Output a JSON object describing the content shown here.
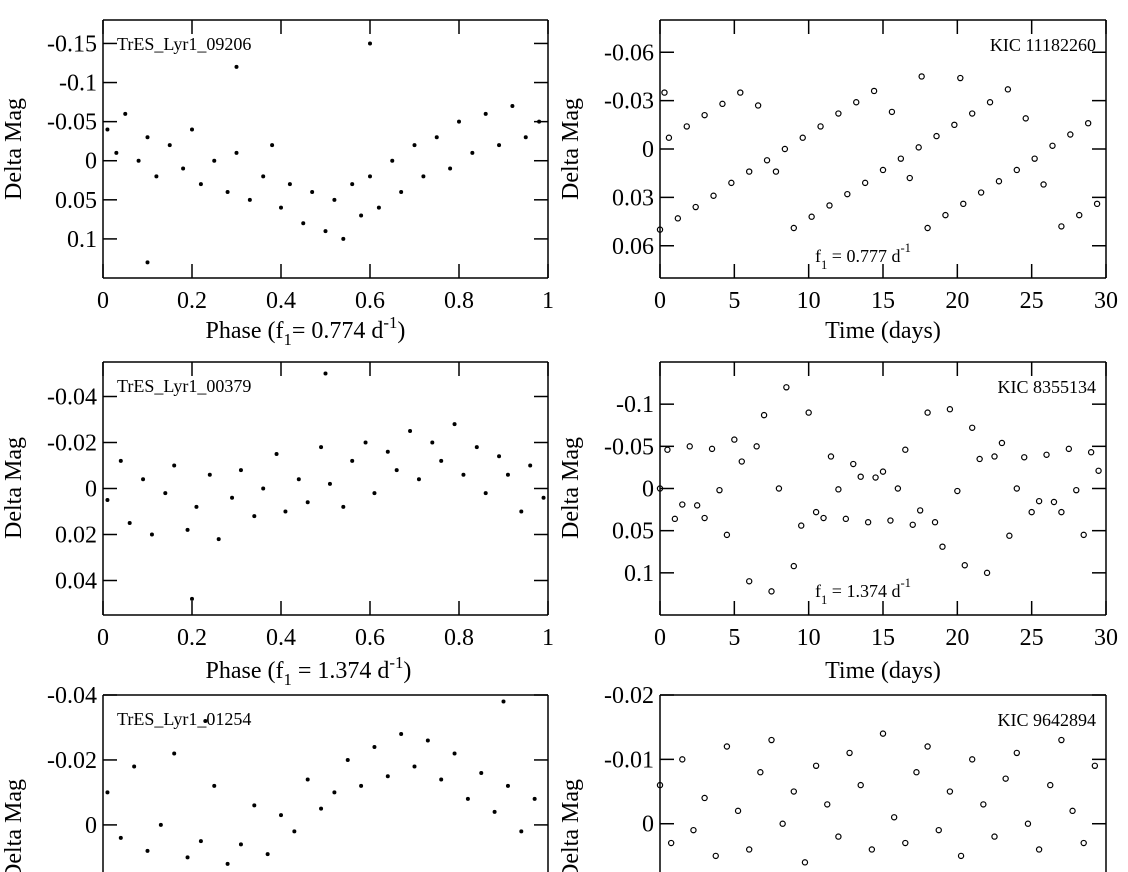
{
  "chart_data": [
    {
      "type": "scatter",
      "annotation": "TrES_Lyr1_09206",
      "ylabel": "Delta Mag",
      "xlabel": {
        "pre": "Phase (f",
        "sub": "1",
        "mid": "= 0.774 d",
        "sup": "-1",
        "post": ")"
      },
      "marker": "filled",
      "y_inverted": true,
      "xlim": [
        0,
        1
      ],
      "xticks": [
        0,
        0.2,
        0.4,
        0.6,
        0.8,
        1
      ],
      "ylim": [
        -0.18,
        0.15
      ],
      "yticks": [
        -0.15,
        -0.1,
        -0.05,
        0,
        0.05,
        0.1
      ],
      "x": [
        0.01,
        0.03,
        0.05,
        0.08,
        0.1,
        0.12,
        0.15,
        0.18,
        0.2,
        0.22,
        0.25,
        0.28,
        0.3,
        0.33,
        0.36,
        0.38,
        0.4,
        0.42,
        0.45,
        0.47,
        0.5,
        0.52,
        0.54,
        0.56,
        0.58,
        0.6,
        0.62,
        0.65,
        0.67,
        0.7,
        0.72,
        0.75,
        0.78,
        0.8,
        0.83,
        0.86,
        0.89,
        0.92,
        0.95,
        0.98,
        0.3,
        0.6,
        0.1
      ],
      "series": [
        {
          "color": "#000000",
          "values": [
            -0.04,
            -0.01,
            -0.06,
            0,
            -0.03,
            0.02,
            -0.02,
            0.01,
            -0.04,
            0.03,
            0,
            0.04,
            -0.01,
            0.05,
            0.02,
            -0.02,
            0.06,
            0.03,
            0.08,
            0.04,
            0.09,
            0.05,
            0.1,
            0.03,
            0.07,
            0.02,
            0.06,
            0,
            0.04,
            -0.02,
            0.02,
            -0.03,
            0.01,
            -0.05,
            -0.01,
            -0.06,
            -0.02,
            -0.07,
            -0.03,
            -0.05,
            -0.12,
            -0.15,
            0.13
          ]
        }
      ]
    },
    {
      "type": "scatter",
      "annotation": "KIC 11182260",
      "ylabel": "Delta Mag",
      "xlabel": "Time (days)",
      "frequency": {
        "pre": "f",
        "sub": "1",
        "mid": " = 0.777 d",
        "sup": "-1"
      },
      "marker": "open",
      "y_inverted": true,
      "xlim": [
        0,
        30
      ],
      "xticks": [
        0,
        5,
        10,
        15,
        20,
        25,
        30
      ],
      "ylim": [
        -0.08,
        0.08
      ],
      "yticks": [
        -0.06,
        -0.03,
        0,
        0.03,
        0.06
      ],
      "x": [
        0,
        0.6,
        1.2,
        1.8,
        2.4,
        3,
        3.6,
        4.2,
        4.8,
        5.4,
        6,
        6.6,
        7.2,
        7.8,
        8.4,
        9,
        9.6,
        10.2,
        10.8,
        11.4,
        12,
        12.6,
        13.2,
        13.8,
        14.4,
        15,
        15.6,
        16.2,
        16.8,
        17.4,
        18,
        18.6,
        19.2,
        19.8,
        20.4,
        21,
        21.6,
        22.2,
        22.8,
        23.4,
        24,
        24.6,
        25.2,
        25.8,
        26.4,
        27,
        27.6,
        28.2,
        28.8,
        29.4,
        17.6,
        20.2,
        0.3
      ],
      "series": [
        {
          "color": "#000000",
          "values": [
            0.05,
            -0.007,
            0.043,
            -0.014,
            0.036,
            -0.021,
            0.029,
            -0.028,
            0.021,
            -0.035,
            0.014,
            -0.027,
            0.007,
            0.014,
            0,
            0.049,
            -0.007,
            0.042,
            -0.014,
            0.035,
            -0.022,
            0.028,
            -0.029,
            0.021,
            -0.036,
            0.013,
            -0.023,
            0.006,
            0.018,
            -0.001,
            0.049,
            -0.008,
            0.041,
            -0.015,
            0.034,
            -0.022,
            0.027,
            -0.029,
            0.02,
            -0.037,
            0.013,
            -0.019,
            0.006,
            0.022,
            -0.002,
            0.048,
            -0.009,
            0.041,
            -0.016,
            0.034,
            -0.045,
            -0.044,
            -0.035
          ]
        }
      ]
    },
    {
      "type": "scatter",
      "annotation": "TrES_Lyr1_00379",
      "ylabel": "Delta Mag",
      "xlabel": {
        "pre": "Phase (f",
        "sub": "1",
        "mid": " = 1.374 d",
        "sup": "-1",
        "post": ")"
      },
      "marker": "filled",
      "y_inverted": true,
      "xlim": [
        0,
        1
      ],
      "xticks": [
        0,
        0.2,
        0.4,
        0.6,
        0.8,
        1
      ],
      "ylim": [
        -0.055,
        0.055
      ],
      "yticks": [
        -0.04,
        -0.02,
        0,
        0.02,
        0.04
      ],
      "x": [
        0.01,
        0.04,
        0.06,
        0.09,
        0.11,
        0.14,
        0.16,
        0.19,
        0.21,
        0.24,
        0.26,
        0.29,
        0.31,
        0.34,
        0.36,
        0.39,
        0.41,
        0.44,
        0.46,
        0.49,
        0.51,
        0.54,
        0.56,
        0.59,
        0.61,
        0.64,
        0.66,
        0.69,
        0.71,
        0.74,
        0.76,
        0.79,
        0.81,
        0.84,
        0.86,
        0.89,
        0.91,
        0.94,
        0.96,
        0.99,
        0.5,
        0.2
      ],
      "series": [
        {
          "color": "#000000",
          "values": [
            0.005,
            -0.012,
            0.015,
            -0.004,
            0.02,
            0.002,
            -0.01,
            0.018,
            0.008,
            -0.006,
            0.022,
            0.004,
            -0.008,
            0.012,
            0,
            -0.015,
            0.01,
            -0.004,
            0.006,
            -0.018,
            -0.002,
            0.008,
            -0.012,
            -0.02,
            0.002,
            -0.016,
            -0.008,
            -0.025,
            -0.004,
            -0.02,
            -0.012,
            -0.028,
            -0.006,
            -0.018,
            0.002,
            -0.014,
            -0.006,
            0.01,
            -0.01,
            0.004,
            -0.05,
            0.048
          ]
        }
      ]
    },
    {
      "type": "scatter",
      "annotation": "KIC 8355134",
      "ylabel": "Delta Mag",
      "xlabel": "Time (days)",
      "frequency": {
        "pre": "f",
        "sub": "1",
        "mid": " = 1.374 d",
        "sup": "-1"
      },
      "marker": "open",
      "y_inverted": true,
      "xlim": [
        0,
        30
      ],
      "xticks": [
        0,
        5,
        10,
        15,
        20,
        25,
        30
      ],
      "ylim": [
        -0.15,
        0.15
      ],
      "yticks": [
        -0.1,
        -0.05,
        0,
        0.05,
        0.1
      ],
      "x": [
        0,
        0.5,
        1,
        1.5,
        2,
        2.5,
        3,
        3.5,
        4,
        4.5,
        5,
        5.5,
        6,
        6.5,
        7,
        7.5,
        8,
        8.5,
        9,
        9.5,
        10,
        10.5,
        11,
        11.5,
        12,
        12.5,
        13,
        13.5,
        14,
        14.5,
        15,
        15.5,
        16,
        16.5,
        17,
        17.5,
        18,
        18.5,
        19,
        19.5,
        20,
        20.5,
        21,
        21.5,
        22,
        22.5,
        23,
        23.5,
        24,
        24.5,
        25,
        25.5,
        26,
        26.5,
        27,
        27.5,
        28,
        28.5,
        29,
        29.5
      ],
      "series": [
        {
          "color": "#000000",
          "values": [
            0,
            -0.046,
            0.036,
            0.019,
            -0.05,
            0.02,
            0.035,
            -0.047,
            0.002,
            0.055,
            -0.058,
            -0.032,
            0.11,
            -0.05,
            -0.087,
            0.122,
            0,
            -0.12,
            0.092,
            0.044,
            -0.09,
            0.028,
            0.035,
            -0.038,
            0.001,
            0.036,
            -0.029,
            -0.014,
            0.04,
            -0.013,
            -0.02,
            0.038,
            0,
            -0.046,
            0.043,
            0.026,
            -0.09,
            0.04,
            0.069,
            -0.094,
            0.003,
            0.091,
            -0.072,
            -0.035,
            0.1,
            -0.038,
            -0.054,
            0.056,
            0,
            -0.037,
            0.028,
            0.015,
            -0.04,
            0.016,
            0.028,
            -0.047,
            0.002,
            0.055,
            -0.043,
            -0.021
          ]
        }
      ]
    },
    {
      "type": "scatter",
      "annotation": "TrES_Lyr1_01254",
      "ylabel": "Delta Mag",
      "marker": "filled",
      "y_inverted": true,
      "xlim": [
        0,
        1
      ],
      "ylim": [
        -0.04,
        0.0145
      ],
      "yticks": [
        -0.04,
        -0.02,
        0
      ],
      "x": [
        0.01,
        0.04,
        0.07,
        0.1,
        0.13,
        0.16,
        0.19,
        0.22,
        0.25,
        0.28,
        0.31,
        0.34,
        0.37,
        0.4,
        0.43,
        0.46,
        0.49,
        0.52,
        0.55,
        0.58,
        0.61,
        0.64,
        0.67,
        0.7,
        0.73,
        0.76,
        0.79,
        0.82,
        0.85,
        0.88,
        0.91,
        0.94,
        0.97,
        0.23,
        0.9
      ],
      "series": [
        {
          "color": "#000000",
          "values": [
            -0.01,
            0.004,
            -0.018,
            0.008,
            0,
            -0.022,
            0.01,
            0.005,
            -0.012,
            0.012,
            0.006,
            -0.006,
            0.009,
            -0.003,
            0.002,
            -0.014,
            -0.005,
            -0.01,
            -0.02,
            -0.012,
            -0.024,
            -0.015,
            -0.028,
            -0.018,
            -0.026,
            -0.014,
            -0.022,
            -0.008,
            -0.016,
            -0.004,
            -0.012,
            0.002,
            -0.008,
            -0.032,
            -0.038
          ]
        }
      ]
    },
    {
      "type": "scatter",
      "annotation": "KIC 9642894",
      "ylabel": "Delta Mag",
      "marker": "open",
      "y_inverted": true,
      "xlim": [
        0,
        30
      ],
      "ylim": [
        -0.02,
        0.0075
      ],
      "yticks": [
        -0.02,
        -0.01,
        0
      ],
      "x": [
        0,
        0.75,
        1.5,
        2.25,
        3,
        3.75,
        4.5,
        5.25,
        6,
        6.75,
        7.5,
        8.25,
        9,
        9.75,
        10.5,
        11.25,
        12,
        12.75,
        13.5,
        14.25,
        15,
        15.75,
        16.5,
        17.25,
        18,
        18.75,
        19.5,
        20.25,
        21,
        21.75,
        22.5,
        23.25,
        24,
        24.75,
        25.5,
        26.25,
        27,
        27.75,
        28.5,
        29.25
      ],
      "series": [
        {
          "color": "#000000",
          "values": [
            -0.006,
            0.003,
            -0.01,
            0.001,
            -0.004,
            0.005,
            -0.012,
            -0.002,
            0.004,
            -0.008,
            -0.013,
            0,
            -0.005,
            0.006,
            -0.009,
            -0.003,
            0.002,
            -0.011,
            -0.006,
            0.004,
            -0.014,
            -0.001,
            0.003,
            -0.008,
            -0.012,
            0.001,
            -0.005,
            0.005,
            -0.01,
            -0.003,
            0.002,
            -0.007,
            -0.011,
            0,
            0.004,
            -0.006,
            -0.013,
            -0.002,
            0.003,
            -0.009
          ]
        }
      ]
    }
  ]
}
